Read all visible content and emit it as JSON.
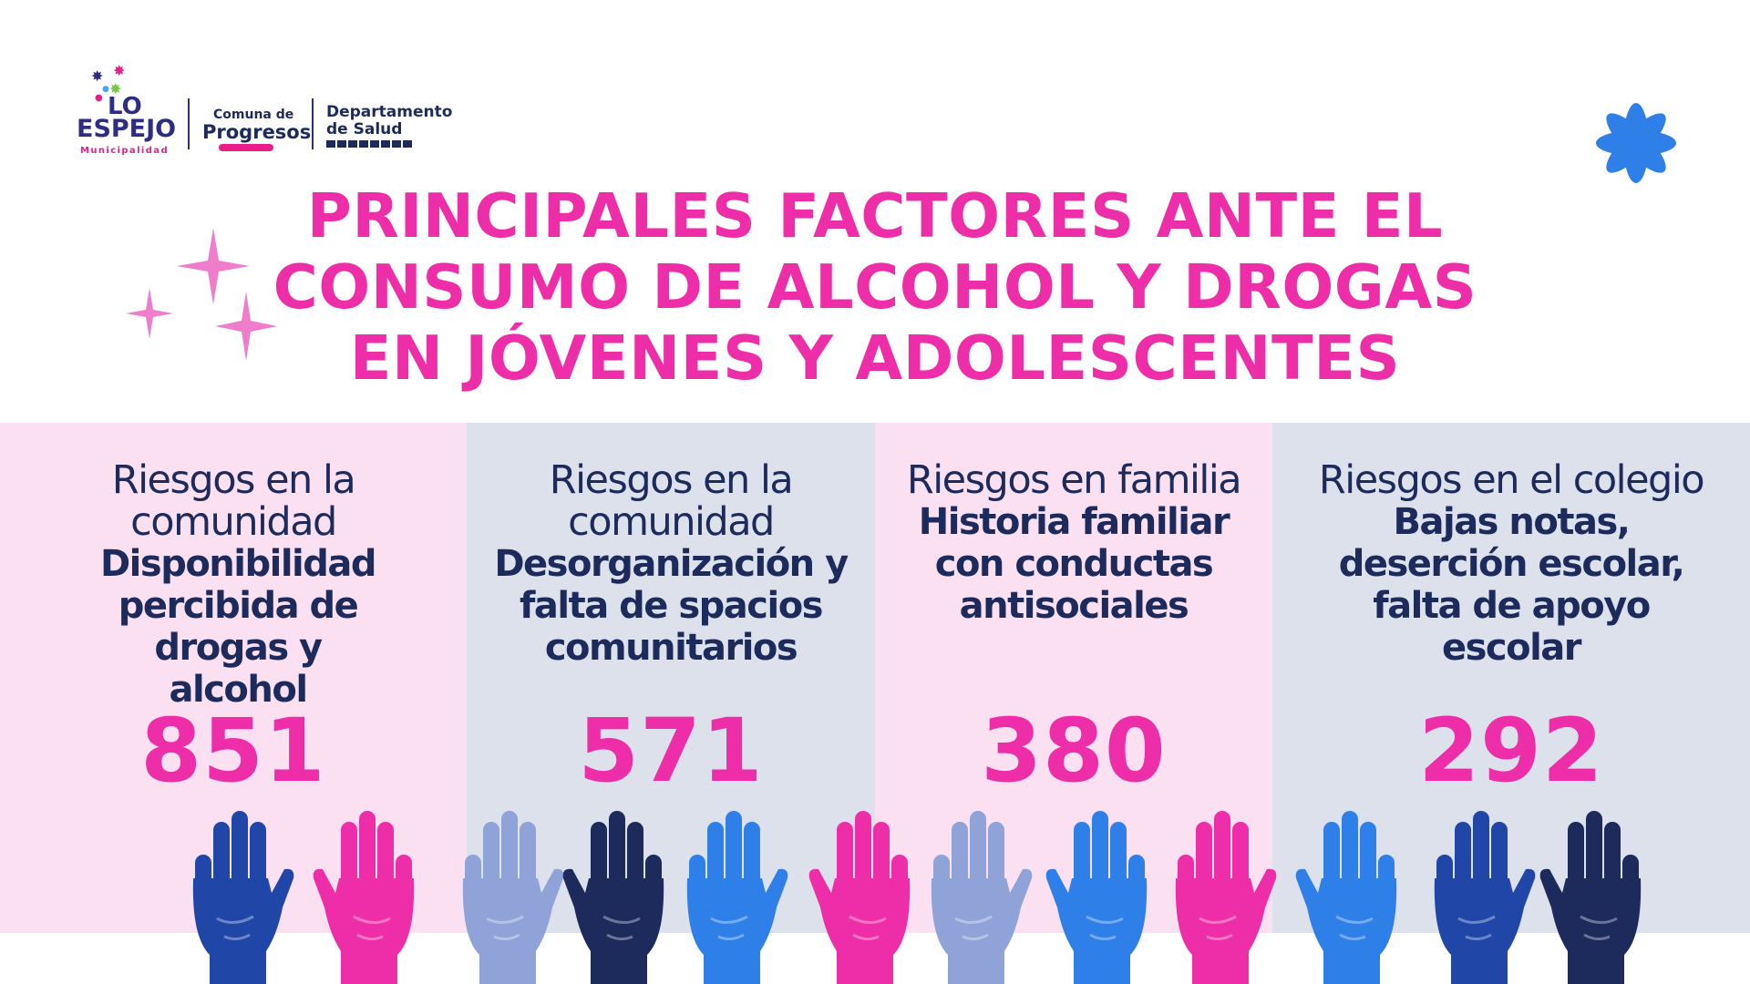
{
  "logos": {
    "lo": "LO",
    "espejo": "ESPEJO",
    "municipalidad": "Municipalidad",
    "comuna_de": "Comuna de",
    "progresos": "Progresos",
    "departamento": "Departamento",
    "de_salud": "de Salud"
  },
  "title": {
    "line1": "PRINCIPALES FACTORES ANTE EL",
    "line2": "CONSUMO DE ALCOHOL Y DROGAS",
    "line3": "EN JÓVENES Y ADOLESCENTES"
  },
  "columns": [
    {
      "category_line1": "Riesgos en la",
      "category_line2": "comunidad",
      "factor": "Disponibilidad percibida de drogas y alcohol",
      "value": "851"
    },
    {
      "category_line1": "Riesgos en la",
      "category_line2": "comunidad",
      "factor": "Desorganización y falta de spacios comunitarios",
      "value": "571"
    },
    {
      "category_line1": "Riesgos en familia",
      "category_line2": "",
      "factor": "Historia familiar con conductas antisociales",
      "value": "380"
    },
    {
      "category_line1": "Riesgos en el colegio",
      "category_line2": "",
      "factor": "Bajas notas, deserción escolar, falta de apoyo escolar",
      "value": "292"
    }
  ],
  "colors": {
    "pink": "#ee2ea8",
    "navy": "#1d2a5c",
    "light_pink_panel": "#fbe0f2",
    "gray_panel": "#dde1eb",
    "blue_star": "#2f7fe8"
  },
  "hands": [
    {
      "color": "#2046a8"
    },
    {
      "color": "#ee2ea8"
    },
    {
      "color": "#8fa3d8"
    },
    {
      "color": "#1d2a5c"
    },
    {
      "color": "#2f7fe8"
    },
    {
      "color": "#ee2ea8"
    },
    {
      "color": "#8fa3d8"
    },
    {
      "color": "#2f7fe8"
    },
    {
      "color": "#ee2ea8"
    },
    {
      "color": "#2f7fe8"
    },
    {
      "color": "#2046a8"
    },
    {
      "color": "#1d2a5c"
    }
  ]
}
